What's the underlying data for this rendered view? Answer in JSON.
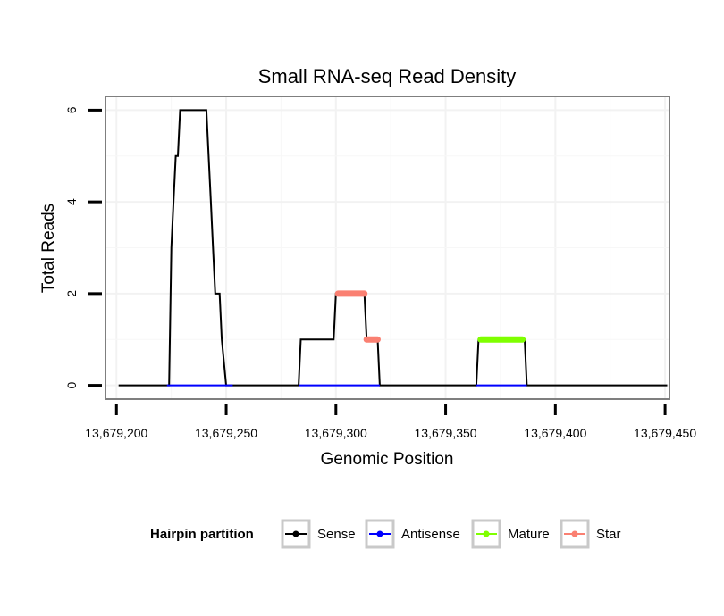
{
  "chart_data": {
    "type": "line",
    "title": "Small RNA-seq Read Density",
    "xlabel": "Genomic Position",
    "ylabel": "Total Reads",
    "xlim": [
      13679195,
      13679452
    ],
    "ylim": [
      -0.3,
      6.3
    ],
    "x_ticks": [
      13679200,
      13679250,
      13679300,
      13679350,
      13679400,
      13679450
    ],
    "x_tick_labels": [
      "13,679,200",
      "13,679,250",
      "13,679,300",
      "13,679,350",
      "13,679,400",
      "13,679,450"
    ],
    "y_ticks": [
      0,
      2,
      4,
      6
    ],
    "y_tick_labels": [
      "0",
      "2",
      "4",
      "6"
    ],
    "grid": true,
    "legend": {
      "title": "Hairpin partition",
      "position": "bottom",
      "entries": [
        "Sense",
        "Antisense",
        "Mature",
        "Star"
      ]
    },
    "series": [
      {
        "name": "Sense",
        "color": "#000000",
        "points": [
          [
            13679201,
            0
          ],
          [
            13679224,
            0
          ],
          [
            13679225,
            3
          ],
          [
            13679226,
            4
          ],
          [
            13679227,
            5
          ],
          [
            13679228,
            5
          ],
          [
            13679229,
            6
          ],
          [
            13679241,
            6
          ],
          [
            13679242,
            5
          ],
          [
            13679243,
            4
          ],
          [
            13679244,
            3
          ],
          [
            13679245,
            2
          ],
          [
            13679247,
            2
          ],
          [
            13679248,
            1
          ],
          [
            13679250,
            0
          ],
          [
            13679283,
            0
          ],
          [
            13679284,
            1
          ],
          [
            13679299,
            1
          ],
          [
            13679300,
            2
          ],
          [
            13679313,
            2
          ],
          [
            13679314,
            1
          ],
          [
            13679319,
            1
          ],
          [
            13679320,
            0
          ],
          [
            13679364,
            0
          ],
          [
            13679365,
            1
          ],
          [
            13679386,
            1
          ],
          [
            13679387,
            0
          ],
          [
            13679451,
            0
          ]
        ]
      },
      {
        "name": "Antisense",
        "color": "#0000ff",
        "segments": [
          [
            13679223,
            13679253
          ],
          [
            13679283,
            13679320
          ],
          [
            13679364,
            13679387
          ]
        ],
        "value": 0
      },
      {
        "name": "Mature",
        "color": "#7fff00",
        "start": 13679366,
        "end": 13679385,
        "value": 1
      },
      {
        "name": "Star",
        "color": "#fa8072",
        "segments": [
          {
            "start": 13679301,
            "end": 13679313,
            "value": 2
          },
          {
            "start": 13679314,
            "end": 13679319,
            "value": 1
          }
        ]
      }
    ]
  }
}
